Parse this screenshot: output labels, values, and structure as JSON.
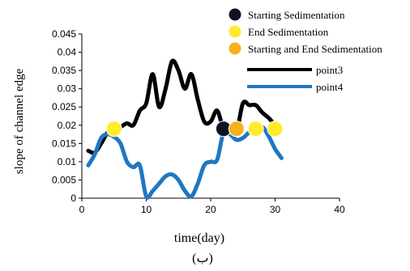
{
  "chart_data": {
    "type": "line",
    "xlabel": "time(day)",
    "ylabel": "slope of channel edge",
    "caption": "(ب)",
    "xlim": [
      0,
      40
    ],
    "ylim": [
      0,
      0.045
    ],
    "x_ticks": [
      "0",
      "10",
      "20",
      "30",
      "40"
    ],
    "y_ticks": [
      "0",
      "0.005",
      "0.01",
      "0.015",
      "0.02",
      "0.025",
      "0.03",
      "0.035",
      "0.04",
      "0.045"
    ],
    "grid": false,
    "legend_position": "top-right",
    "series": [
      {
        "name": "point3",
        "color": "#000000",
        "x": [
          1,
          2,
          3,
          4,
          5,
          6,
          7,
          8,
          9,
          10,
          11,
          12,
          13,
          14,
          15,
          16,
          17,
          18,
          19,
          20,
          21,
          22,
          23,
          24,
          25,
          26,
          27,
          28,
          29,
          30
        ],
        "y": [
          0.013,
          0.0125,
          0.015,
          0.018,
          0.019,
          0.0195,
          0.0205,
          0.02,
          0.024,
          0.026,
          0.034,
          0.025,
          0.03,
          0.0375,
          0.035,
          0.03,
          0.034,
          0.027,
          0.021,
          0.021,
          0.024,
          0.019,
          0.0185,
          0.018,
          0.026,
          0.0255,
          0.0255,
          0.0235,
          0.022,
          0.02
        ]
      },
      {
        "name": "point4",
        "color": "#1f77c2",
        "x": [
          1,
          2,
          3,
          4,
          5,
          6,
          7,
          8,
          9,
          10,
          11,
          12,
          13,
          14,
          15,
          16,
          17,
          18,
          19,
          20,
          21,
          22,
          23,
          24,
          25,
          26,
          27,
          28,
          29,
          30,
          31
        ],
        "y": [
          0.009,
          0.012,
          0.0165,
          0.0175,
          0.0168,
          0.015,
          0.01,
          0.0085,
          0.009,
          0.0005,
          0.002,
          0.004,
          0.006,
          0.0065,
          0.005,
          0.002,
          0.0005,
          0.004,
          0.009,
          0.01,
          0.0105,
          0.018,
          0.0175,
          0.016,
          0.0165,
          0.018,
          0.018,
          0.0195,
          0.017,
          0.0135,
          0.011
        ]
      }
    ],
    "markers": [
      {
        "label": "Starting Sedimentation",
        "color": "#111122",
        "points": [
          {
            "x": 22,
            "y": 0.019
          }
        ]
      },
      {
        "label": "End Sedimentation",
        "color": "#ffeb2a",
        "points": [
          {
            "x": 5,
            "y": 0.019
          },
          {
            "x": 27,
            "y": 0.019
          },
          {
            "x": 30,
            "y": 0.019
          }
        ]
      },
      {
        "label": "Starting and End Sedimentation",
        "color": "#f7b01e",
        "points": [
          {
            "x": 24,
            "y": 0.019
          }
        ]
      }
    ]
  }
}
